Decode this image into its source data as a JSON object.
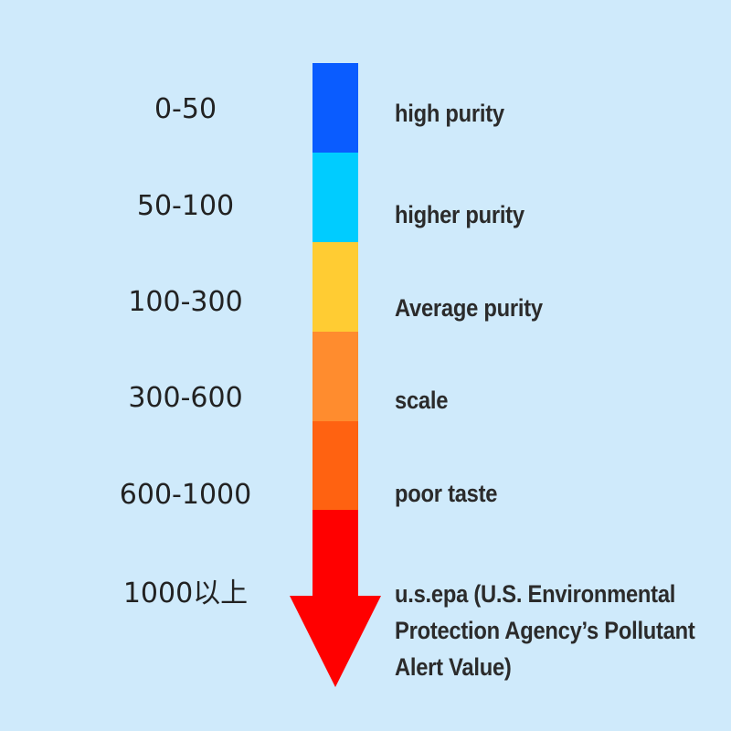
{
  "levels": [
    {
      "range": "0-50",
      "label": "high purity",
      "color": "#0a5cff"
    },
    {
      "range": "50-100",
      "label": "higher purity",
      "color": "#00ccff"
    },
    {
      "range": "100-300",
      "label": "Average purity",
      "color": "#ffcc33"
    },
    {
      "range": "300-600",
      "label": "scale",
      "color": "#ff8c2e"
    },
    {
      "range": "600-1000",
      "label": "poor taste",
      "color": "#ff6211"
    },
    {
      "range": "1000以上",
      "label": "u.s.epa (U.S. Environmental Protection Agency’s Pollutant Alert Value)",
      "color": "#ff0000"
    }
  ],
  "background_color": "#cfeafb"
}
